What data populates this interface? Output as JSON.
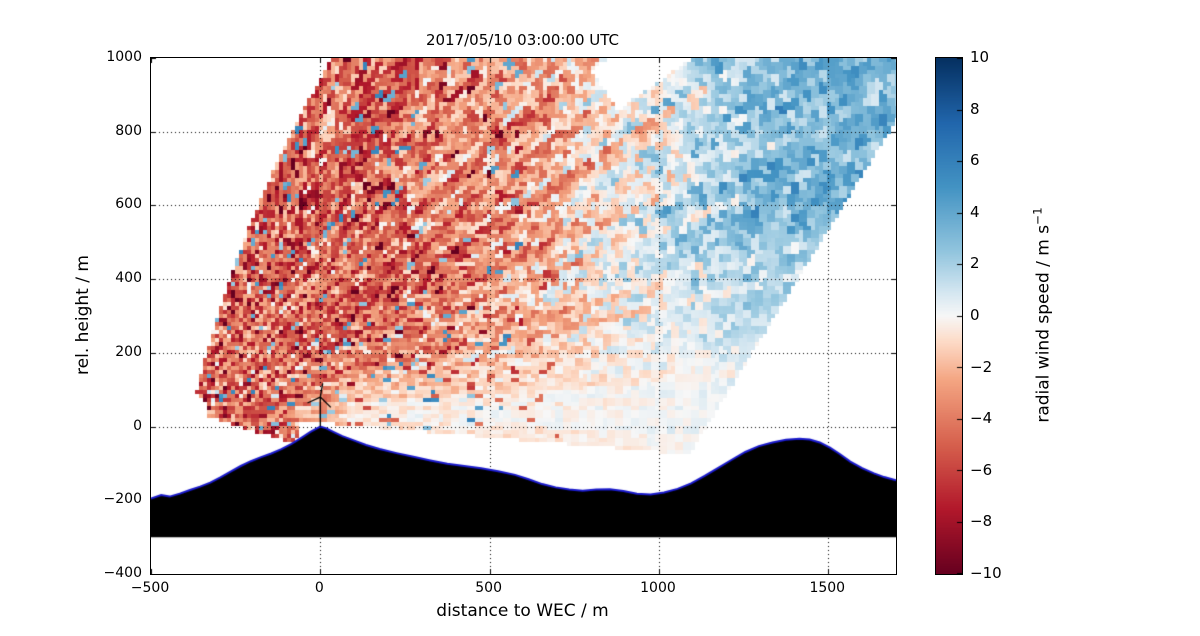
{
  "chart_data": {
    "type": "heatmap",
    "title": "2017/05/10 03:00:00 UTC",
    "xlabel": "distance to WEC / m",
    "ylabel": "rel. height / m",
    "xlim": [
      -500,
      1700
    ],
    "ylim": [
      -400,
      1000
    ],
    "xticks": {
      "values": [
        -500,
        0,
        500,
        1000,
        1500
      ],
      "labels": [
        "−500",
        "0",
        "500",
        "1000",
        "1500"
      ]
    },
    "yticks": {
      "values": [
        -400,
        -200,
        0,
        200,
        400,
        600,
        800,
        1000
      ],
      "labels": [
        "−400",
        "−200",
        "0",
        "200",
        "400",
        "600",
        "800",
        "1000"
      ]
    },
    "grid": {
      "x": [
        0,
        500,
        1000,
        1500
      ],
      "y": [
        -200,
        0,
        200,
        400,
        600,
        800
      ],
      "style": "dotted"
    },
    "colorbar": {
      "label": "radial wind speed / m s",
      "label_sup": "−1",
      "min": -10,
      "max": 10,
      "tick_values": [
        10,
        8,
        6,
        4,
        2,
        0,
        -2,
        -4,
        -6,
        -8,
        -10
      ],
      "tick_labels": [
        "10",
        "8",
        "6",
        "4",
        "2",
        "0",
        "−2",
        "−4",
        "−6",
        "−8",
        "−10"
      ],
      "colormap": "RdBu (red = negative, blue = positive)",
      "stops": [
        {
          "v": -10,
          "c": "#67001f"
        },
        {
          "v": -7.5,
          "c": "#b2182b"
        },
        {
          "v": -5,
          "c": "#d6604d"
        },
        {
          "v": -2.5,
          "c": "#f4a582"
        },
        {
          "v": -1,
          "c": "#fddbc7"
        },
        {
          "v": 0,
          "c": "#f7f7f7"
        },
        {
          "v": 1,
          "c": "#d1e5f0"
        },
        {
          "v": 2.5,
          "c": "#92c5de"
        },
        {
          "v": 5,
          "c": "#4393c3"
        },
        {
          "v": 7.5,
          "c": "#2166ac"
        },
        {
          "v": 10,
          "c": "#053061"
        }
      ]
    },
    "scan": {
      "description": "Lidar RHI fan scan of noisy radial wind speed above terrain; fan apex near lower-left, beams radiating up-right",
      "origin_x": -380,
      "origin_y": 40,
      "r_min": 50,
      "r_max": 2400,
      "angle_min_deg": -4.5,
      "angle_max_base_deg": 76,
      "angle_max_slope": 0.009,
      "right_edge_line": {
        "x0": 1060,
        "y0": -120,
        "slope": 1.484
      },
      "gap": {
        "angle_min": 33,
        "angle_max": 38,
        "r_min": 1500
      },
      "field": {
        "mean_profile": [
          [
            -500,
            -4.6
          ],
          [
            150,
            -4.6
          ],
          [
            600,
            -2.9
          ],
          [
            950,
            0.0
          ],
          [
            1250,
            2.6
          ],
          [
            1700,
            3.4
          ]
        ],
        "noise_amp_left": 3.1,
        "noise_amp_right": 1.5,
        "note": "negative (red) radial speeds over left/central fan, positive (blue) over right fan, smooth near-zero pale band along low-elevation far-range beams near terrain"
      }
    },
    "terrain": {
      "fill": "#000000",
      "line_color": "#1a1acd",
      "base_y": -300,
      "profile": [
        [
          -500,
          -195
        ],
        [
          -470,
          -186
        ],
        [
          -445,
          -190
        ],
        [
          -415,
          -182
        ],
        [
          -385,
          -172
        ],
        [
          -355,
          -163
        ],
        [
          -325,
          -152
        ],
        [
          -295,
          -138
        ],
        [
          -265,
          -122
        ],
        [
          -235,
          -107
        ],
        [
          -205,
          -94
        ],
        [
          -175,
          -83
        ],
        [
          -145,
          -73
        ],
        [
          -115,
          -61
        ],
        [
          -85,
          -47
        ],
        [
          -55,
          -30
        ],
        [
          -28,
          -14
        ],
        [
          0,
          0
        ],
        [
          18,
          -5
        ],
        [
          40,
          -15
        ],
        [
          65,
          -26
        ],
        [
          95,
          -36
        ],
        [
          135,
          -50
        ],
        [
          175,
          -61
        ],
        [
          225,
          -72
        ],
        [
          275,
          -82
        ],
        [
          325,
          -92
        ],
        [
          375,
          -101
        ],
        [
          425,
          -107
        ],
        [
          475,
          -113
        ],
        [
          525,
          -121
        ],
        [
          575,
          -131
        ],
        [
          615,
          -143
        ],
        [
          655,
          -156
        ],
        [
          695,
          -165
        ],
        [
          735,
          -171
        ],
        [
          775,
          -174
        ],
        [
          815,
          -171
        ],
        [
          855,
          -170
        ],
        [
          895,
          -175
        ],
        [
          935,
          -182
        ],
        [
          975,
          -184
        ],
        [
          1015,
          -179
        ],
        [
          1055,
          -169
        ],
        [
          1095,
          -154
        ],
        [
          1135,
          -134
        ],
        [
          1175,
          -112
        ],
        [
          1215,
          -90
        ],
        [
          1255,
          -69
        ],
        [
          1295,
          -53
        ],
        [
          1335,
          -43
        ],
        [
          1375,
          -36
        ],
        [
          1415,
          -33
        ],
        [
          1445,
          -35
        ],
        [
          1475,
          -43
        ],
        [
          1505,
          -57
        ],
        [
          1535,
          -75
        ],
        [
          1565,
          -95
        ],
        [
          1600,
          -113
        ],
        [
          1635,
          -127
        ],
        [
          1665,
          -137
        ],
        [
          1700,
          -146
        ]
      ]
    },
    "turbine": {
      "x": 0,
      "base_y": 0,
      "tower_top": 80,
      "blades": [
        [
          7,
          117
        ],
        [
          -38,
          64
        ],
        [
          31,
          52
        ]
      ]
    }
  }
}
